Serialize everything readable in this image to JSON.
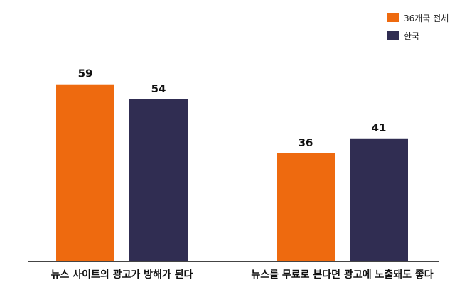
{
  "chart_data": {
    "type": "bar",
    "categories": [
      "뉴스 사이트의 광고가 방해가 된다",
      "뉴스를 무료로 본다면 광고에 노출돼도 좋다"
    ],
    "series": [
      {
        "name": "36개국 전체",
        "values": [
          59,
          36
        ],
        "color": "#ee6a0f"
      },
      {
        "name": "한국",
        "values": [
          54,
          41
        ],
        "color": "#302d52"
      }
    ],
    "ylim": [
      0,
      70
    ],
    "legend_position": "top-right",
    "grid": false
  }
}
